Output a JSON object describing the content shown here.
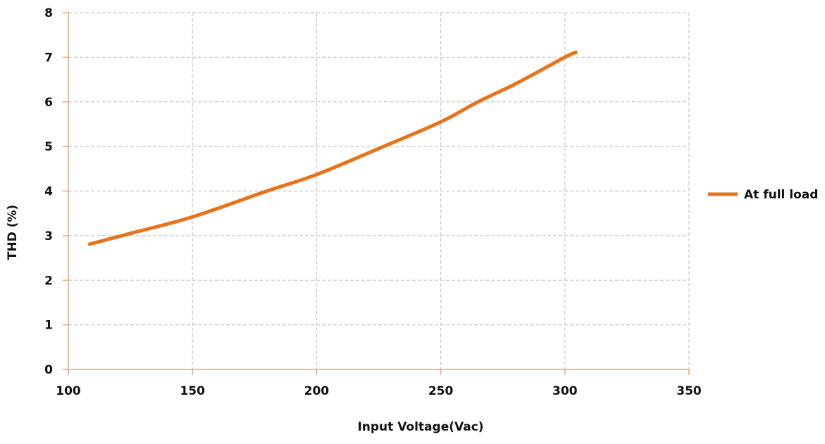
{
  "chart_data": {
    "type": "line",
    "title": "",
    "xlabel": "Input Voltage(Vac)",
    "ylabel": "THD (%)",
    "xlim": [
      100,
      350
    ],
    "ylim": [
      0,
      8
    ],
    "xticks": [
      100,
      150,
      200,
      250,
      300,
      350
    ],
    "yticks": [
      0,
      1,
      2,
      3,
      4,
      5,
      6,
      7,
      8
    ],
    "grid": true,
    "legend_position": "right",
    "series": [
      {
        "name": "At full load",
        "color": "#E8731A",
        "x": [
          108,
          125,
          150,
          180,
          200,
          227,
          250,
          265,
          280,
          300,
          305
        ],
        "y": [
          2.8,
          3.05,
          3.42,
          4.0,
          4.37,
          5.0,
          5.55,
          6.0,
          6.4,
          7.0,
          7.12
        ]
      }
    ]
  },
  "colors": {
    "axis": "#F0A46A",
    "grid": "#C8C8C8",
    "series": "#E8731A"
  }
}
